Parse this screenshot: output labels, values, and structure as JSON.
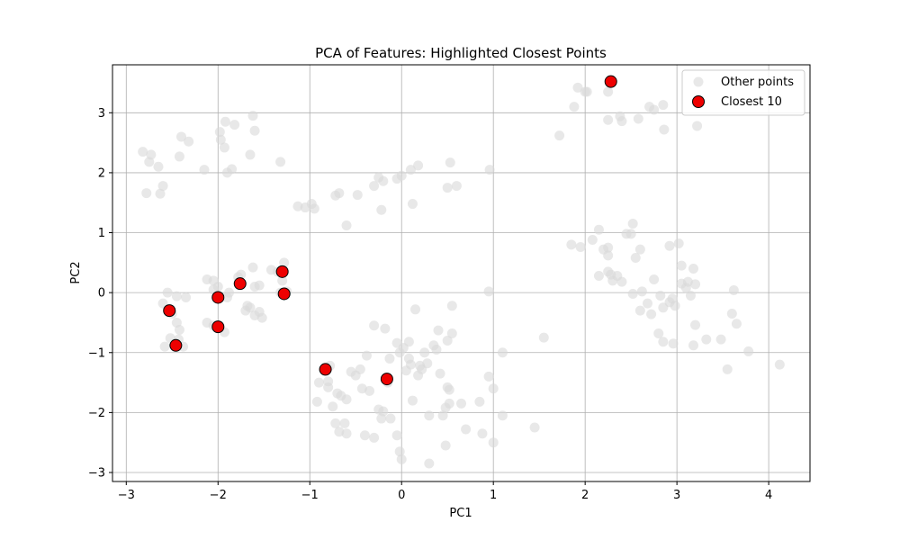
{
  "chart_data": {
    "type": "scatter",
    "title": "PCA of Features: Highlighted Closest Points",
    "xlabel": "PC1",
    "ylabel": "PC2",
    "xlim": [
      -3.15,
      4.45
    ],
    "ylim": [
      -3.15,
      3.8
    ],
    "xticks": [
      -3,
      -2,
      -1,
      0,
      1,
      2,
      3,
      4
    ],
    "yticks": [
      -3,
      -2,
      -1,
      0,
      1,
      2,
      3
    ],
    "grid": true,
    "legend_position": "top-right",
    "series": [
      {
        "name": "Other points",
        "color": "#d9d9d9",
        "points": [
          [
            -2.82,
            2.35
          ],
          [
            -2.73,
            2.3
          ],
          [
            -2.75,
            2.18
          ],
          [
            -2.65,
            2.1
          ],
          [
            -2.78,
            1.66
          ],
          [
            -2.63,
            1.65
          ],
          [
            -2.6,
            1.78
          ],
          [
            -2.4,
            2.6
          ],
          [
            -2.32,
            2.52
          ],
          [
            -2.42,
            2.27
          ],
          [
            -2.15,
            2.05
          ],
          [
            -1.92,
            2.85
          ],
          [
            -1.82,
            2.8
          ],
          [
            -1.62,
            2.95
          ],
          [
            -1.98,
            2.68
          ],
          [
            -1.97,
            2.55
          ],
          [
            -1.93,
            2.42
          ],
          [
            -1.9,
            2.0
          ],
          [
            -1.85,
            2.06
          ],
          [
            -1.6,
            2.7
          ],
          [
            -1.65,
            2.3
          ],
          [
            -1.32,
            2.18
          ],
          [
            -2.55,
            0.0
          ],
          [
            -2.6,
            -0.18
          ],
          [
            -2.45,
            -0.06
          ],
          [
            -2.35,
            -0.08
          ],
          [
            -2.5,
            -0.35
          ],
          [
            -2.45,
            -0.5
          ],
          [
            -2.42,
            -0.62
          ],
          [
            -2.52,
            -0.76
          ],
          [
            -2.43,
            -0.78
          ],
          [
            -2.38,
            -0.9
          ],
          [
            -2.58,
            -0.9
          ],
          [
            -2.12,
            0.22
          ],
          [
            -2.05,
            0.2
          ],
          [
            -2.0,
            0.1
          ],
          [
            -2.05,
            0.05
          ],
          [
            -2.12,
            -0.5
          ],
          [
            -2.05,
            -0.55
          ],
          [
            -1.98,
            -0.58
          ],
          [
            -1.93,
            -0.66
          ],
          [
            -1.9,
            -0.08
          ],
          [
            -1.88,
            0.0
          ],
          [
            -1.78,
            0.26
          ],
          [
            -1.75,
            0.3
          ],
          [
            -1.62,
            0.42
          ],
          [
            -1.6,
            0.1
          ],
          [
            -1.55,
            0.12
          ],
          [
            -1.7,
            -0.3
          ],
          [
            -1.65,
            -0.25
          ],
          [
            -1.6,
            -0.38
          ],
          [
            -1.55,
            -0.32
          ],
          [
            -1.52,
            -0.42
          ],
          [
            -1.68,
            -0.22
          ],
          [
            -1.42,
            0.38
          ],
          [
            -1.35,
            0.35
          ],
          [
            -1.28,
            0.5
          ],
          [
            -1.3,
            0.2
          ],
          [
            -1.32,
            0.0
          ],
          [
            -1.25,
            0.02
          ],
          [
            -1.13,
            1.44
          ],
          [
            -1.05,
            1.42
          ],
          [
            -0.98,
            1.48
          ],
          [
            -0.95,
            1.4
          ],
          [
            -0.72,
            1.62
          ],
          [
            -0.68,
            1.66
          ],
          [
            -0.6,
            1.12
          ],
          [
            -0.48,
            1.63
          ],
          [
            -0.3,
            1.78
          ],
          [
            -0.25,
            1.92
          ],
          [
            -0.2,
            1.86
          ],
          [
            -0.22,
            1.38
          ],
          [
            -0.05,
            1.9
          ],
          [
            0.0,
            1.95
          ],
          [
            0.1,
            2.05
          ],
          [
            0.18,
            2.12
          ],
          [
            0.12,
            1.48
          ],
          [
            0.5,
            1.75
          ],
          [
            0.53,
            2.17
          ],
          [
            0.6,
            1.78
          ],
          [
            0.96,
            2.05
          ],
          [
            -0.92,
            -1.82
          ],
          [
            -0.9,
            -1.5
          ],
          [
            -0.8,
            -1.58
          ],
          [
            -0.8,
            -1.48
          ],
          [
            -0.78,
            -1.22
          ],
          [
            -0.75,
            -1.9
          ],
          [
            -0.72,
            -2.18
          ],
          [
            -0.7,
            -1.68
          ],
          [
            -0.68,
            -2.32
          ],
          [
            -0.66,
            -1.72
          ],
          [
            -0.62,
            -2.18
          ],
          [
            -0.6,
            -1.78
          ],
          [
            -0.6,
            -2.35
          ],
          [
            -0.55,
            -1.32
          ],
          [
            -0.5,
            -1.38
          ],
          [
            -0.45,
            -1.28
          ],
          [
            -0.43,
            -1.6
          ],
          [
            -0.38,
            -1.05
          ],
          [
            -0.35,
            -1.64
          ],
          [
            -0.4,
            -2.38
          ],
          [
            -0.3,
            -2.42
          ],
          [
            -0.3,
            -0.55
          ],
          [
            -0.25,
            -1.95
          ],
          [
            -0.22,
            -2.1
          ],
          [
            -0.2,
            -1.98
          ],
          [
            -0.18,
            -0.6
          ],
          [
            -0.15,
            -1.5
          ],
          [
            -0.13,
            -1.1
          ],
          [
            -0.12,
            -2.1
          ],
          [
            -0.05,
            -0.84
          ],
          [
            -0.02,
            -1.0
          ],
          [
            0.02,
            -0.92
          ],
          [
            -0.05,
            -2.38
          ],
          [
            -0.02,
            -2.65
          ],
          [
            0.0,
            -2.78
          ],
          [
            0.05,
            -1.3
          ],
          [
            0.08,
            -1.1
          ],
          [
            0.08,
            -0.82
          ],
          [
            0.1,
            -1.2
          ],
          [
            0.12,
            -1.8
          ],
          [
            0.15,
            -0.28
          ],
          [
            0.18,
            -1.38
          ],
          [
            0.2,
            -1.22
          ],
          [
            0.22,
            -1.28
          ],
          [
            0.25,
            -1.0
          ],
          [
            0.28,
            -1.18
          ],
          [
            0.3,
            -2.05
          ],
          [
            0.3,
            -2.85
          ],
          [
            0.35,
            -0.88
          ],
          [
            0.38,
            -0.95
          ],
          [
            0.4,
            -0.63
          ],
          [
            0.42,
            -1.35
          ],
          [
            0.45,
            -2.05
          ],
          [
            0.48,
            -1.92
          ],
          [
            0.5,
            -0.8
          ],
          [
            0.5,
            -1.58
          ],
          [
            0.52,
            -1.62
          ],
          [
            0.55,
            -0.68
          ],
          [
            0.55,
            -0.22
          ],
          [
            0.48,
            -2.55
          ],
          [
            0.52,
            -1.85
          ],
          [
            0.65,
            -1.85
          ],
          [
            0.7,
            -2.28
          ],
          [
            0.85,
            -1.82
          ],
          [
            0.88,
            -2.35
          ],
          [
            0.95,
            -1.4
          ],
          [
            1.0,
            -1.6
          ],
          [
            1.0,
            -2.5
          ],
          [
            1.1,
            -2.05
          ],
          [
            1.1,
            -1.0
          ],
          [
            1.45,
            -2.25
          ],
          [
            1.55,
            -0.75
          ],
          [
            0.95,
            0.02
          ],
          [
            1.72,
            2.62
          ],
          [
            1.88,
            3.1
          ],
          [
            1.92,
            3.42
          ],
          [
            2.0,
            3.35
          ],
          [
            2.02,
            3.35
          ],
          [
            2.25,
            3.35
          ],
          [
            2.25,
            2.88
          ],
          [
            2.38,
            2.94
          ],
          [
            2.4,
            2.86
          ],
          [
            2.58,
            2.9
          ],
          [
            2.7,
            3.1
          ],
          [
            2.75,
            3.05
          ],
          [
            2.85,
            3.13
          ],
          [
            2.86,
            2.72
          ],
          [
            3.22,
            2.78
          ],
          [
            1.85,
            0.8
          ],
          [
            1.95,
            0.76
          ],
          [
            2.08,
            0.88
          ],
          [
            2.15,
            1.05
          ],
          [
            2.2,
            0.72
          ],
          [
            2.25,
            0.75
          ],
          [
            2.25,
            0.62
          ],
          [
            2.15,
            0.28
          ],
          [
            2.25,
            0.35
          ],
          [
            2.28,
            0.3
          ],
          [
            2.3,
            0.2
          ],
          [
            2.35,
            0.28
          ],
          [
            2.4,
            0.18
          ],
          [
            2.45,
            0.98
          ],
          [
            2.5,
            0.98
          ],
          [
            2.52,
            1.15
          ],
          [
            2.55,
            0.58
          ],
          [
            2.6,
            0.72
          ],
          [
            2.52,
            -0.02
          ],
          [
            2.62,
            0.02
          ],
          [
            2.6,
            -0.3
          ],
          [
            2.68,
            -0.18
          ],
          [
            2.75,
            0.22
          ],
          [
            2.72,
            -0.36
          ],
          [
            2.82,
            -0.05
          ],
          [
            2.85,
            -0.25
          ],
          [
            2.8,
            -0.68
          ],
          [
            2.85,
            -0.82
          ],
          [
            2.92,
            0.78
          ],
          [
            2.92,
            -0.16
          ],
          [
            2.95,
            -0.1
          ],
          [
            2.98,
            -0.22
          ],
          [
            2.96,
            -0.85
          ],
          [
            3.02,
            0.82
          ],
          [
            3.05,
            0.45
          ],
          [
            3.05,
            0.15
          ],
          [
            3.1,
            0.08
          ],
          [
            3.12,
            0.18
          ],
          [
            3.15,
            -0.05
          ],
          [
            3.18,
            0.4
          ],
          [
            3.2,
            0.14
          ],
          [
            3.18,
            -0.88
          ],
          [
            3.2,
            -0.54
          ],
          [
            3.32,
            -0.78
          ],
          [
            3.48,
            -0.78
          ],
          [
            3.55,
            -1.28
          ],
          [
            3.6,
            -0.35
          ],
          [
            3.62,
            0.04
          ],
          [
            3.65,
            -0.52
          ],
          [
            3.78,
            -0.98
          ],
          [
            4.12,
            -1.2
          ]
        ]
      },
      {
        "name": "Closest 10",
        "color": "#ee0000",
        "edgecolor": "#000000",
        "points": [
          [
            2.28,
            3.52
          ],
          [
            -1.3,
            0.35
          ],
          [
            -1.28,
            -0.02
          ],
          [
            -1.76,
            0.15
          ],
          [
            -2.0,
            -0.08
          ],
          [
            -2.53,
            -0.3
          ],
          [
            -2.0,
            -0.57
          ],
          [
            -2.46,
            -0.88
          ],
          [
            -0.83,
            -1.28
          ],
          [
            -0.16,
            -1.44
          ]
        ]
      }
    ]
  }
}
